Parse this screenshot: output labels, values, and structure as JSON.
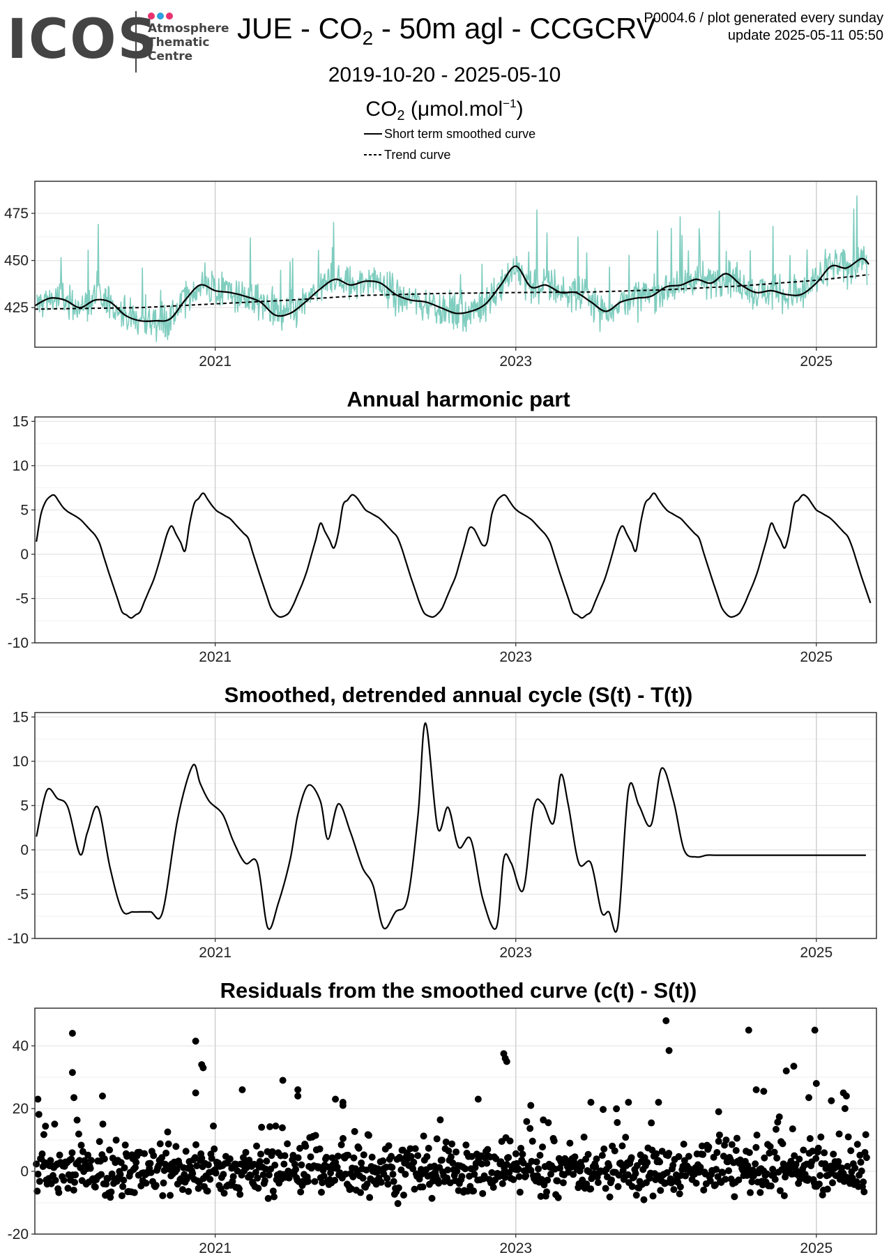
{
  "header": {
    "logo_text": "ICOS",
    "logo_subtitle": [
      "Atmosphere",
      "Thematic",
      "Centre"
    ],
    "logo_dot_colors": [
      "#e8316f",
      "#2d9fe0",
      "#e8316f"
    ],
    "title_prefix": "JUE - CO",
    "title_subscript": "2",
    "title_suffix": " - 50m agl - CCGCRV",
    "date_range": "2019-10-20 - 2025-05-10",
    "unit_prefix": "CO",
    "unit_subscript": "2",
    "unit_middle": " (μmol.mol",
    "unit_superscript": "−1",
    "unit_suffix": ")",
    "meta_line1": "P0004.6 / plot generated every sunday",
    "meta_line2": "update  2025-05-11 05:50"
  },
  "legend": [
    {
      "label": "Short term smoothed curve",
      "style": "solid"
    },
    {
      "label": "Trend curve",
      "style": "dashed"
    }
  ],
  "colors": {
    "raw_series": "#7fcdbf",
    "curve": "#000000",
    "grid": "#e6e6e6",
    "axis_frame": "#333333"
  },
  "chart_data": [
    {
      "type": "line",
      "title": "",
      "xlim": [
        2019.8,
        2025.4
      ],
      "ylim": [
        404,
        492
      ],
      "yticks": [
        425,
        450,
        475
      ],
      "xticks": [
        2021,
        2023,
        2025
      ],
      "xtick_labels": [
        "2021",
        "2023",
        "2025"
      ],
      "grid": true,
      "series": [
        {
          "name": "Short term smoothed curve",
          "style": "solid",
          "x": [
            2019.8,
            2019.9,
            2020.0,
            2020.1,
            2020.2,
            2020.3,
            2020.4,
            2020.5,
            2020.6,
            2020.7,
            2020.8,
            2020.9,
            2021.0,
            2021.1,
            2021.2,
            2021.3,
            2021.4,
            2021.5,
            2021.6,
            2021.7,
            2021.8,
            2021.9,
            2022.0,
            2022.1,
            2022.2,
            2022.3,
            2022.4,
            2022.5,
            2022.6,
            2022.7,
            2022.8,
            2022.9,
            2023.0,
            2023.1,
            2023.2,
            2023.3,
            2023.4,
            2023.5,
            2023.6,
            2023.7,
            2023.8,
            2023.9,
            2024.0,
            2024.1,
            2024.2,
            2024.3,
            2024.4,
            2024.5,
            2024.6,
            2024.7,
            2024.8,
            2024.9,
            2025.0,
            2025.1,
            2025.2,
            2025.3,
            2025.35
          ],
          "y": [
            426,
            430,
            429,
            425,
            429,
            428,
            421,
            418,
            418,
            419,
            429,
            437,
            434,
            433,
            431,
            428,
            421,
            422,
            428,
            435,
            440,
            437,
            439,
            438,
            432,
            429,
            428,
            425,
            422,
            423,
            427,
            437,
            447,
            436,
            437,
            433,
            433,
            428,
            423,
            428,
            430,
            431,
            436,
            437,
            440,
            438,
            443,
            437,
            433,
            434,
            432,
            432,
            438,
            447,
            446,
            451,
            448
          ]
        },
        {
          "name": "Trend curve",
          "style": "dashed",
          "x": [
            2019.8,
            2020.5,
            2021.0,
            2021.5,
            2022.0,
            2022.5,
            2023.0,
            2023.5,
            2024.0,
            2024.5,
            2025.0,
            2025.35
          ],
          "y": [
            424.2,
            425.0,
            427.0,
            429.0,
            431.5,
            432.5,
            433.0,
            433.3,
            434.5,
            436.5,
            439.5,
            442.5
          ]
        }
      ]
    },
    {
      "type": "line",
      "title": "Annual harmonic part",
      "xlim": [
        2019.8,
        2025.4
      ],
      "ylim": [
        -10,
        15.5
      ],
      "yticks": [
        -10,
        -5,
        0,
        5,
        10,
        15
      ],
      "xticks": [
        2021,
        2023,
        2025
      ],
      "xtick_labels": [
        "2021",
        "2023",
        "2025"
      ],
      "grid": true,
      "series": [
        {
          "style": "solid",
          "x_phase_start": 2019.8,
          "period_samples_phase": [
            0.0,
            0.05,
            0.12,
            0.2,
            0.3,
            0.42,
            0.5,
            0.58,
            0.64,
            0.7,
            0.8,
            0.9,
            1.0
          ],
          "period_samples_value": [
            0.4,
            5.5,
            6.9,
            5.0,
            4.0,
            1.8,
            -2.5,
            -6.5,
            -7.2,
            -6.5,
            -2.5,
            3.5,
            0.4
          ]
        }
      ]
    },
    {
      "type": "line",
      "title": "Smoothed, detrended annual cycle (S(t) - T(t))",
      "xlim": [
        2019.8,
        2025.4
      ],
      "ylim": [
        -10,
        15.5
      ],
      "yticks": [
        -10,
        -5,
        0,
        5,
        10,
        15
      ],
      "xticks": [
        2021,
        2023,
        2025
      ],
      "xtick_labels": [
        "2021",
        "2023",
        "2025"
      ],
      "grid": true,
      "series": [
        {
          "style": "solid",
          "x": [
            2019.81,
            2019.88,
            2019.95,
            2020.02,
            2020.1,
            2020.15,
            2020.22,
            2020.3,
            2020.38,
            2020.45,
            2020.5,
            2020.57,
            2020.65,
            2020.75,
            2020.85,
            2020.9,
            2020.96,
            2021.05,
            2021.12,
            2021.2,
            2021.28,
            2021.35,
            2021.42,
            2021.5,
            2021.55,
            2021.62,
            2021.7,
            2021.75,
            2021.82,
            2021.9,
            2021.98,
            2022.05,
            2022.12,
            2022.2,
            2022.28,
            2022.35,
            2022.4,
            2022.48,
            2022.55,
            2022.62,
            2022.7,
            2022.78,
            2022.87,
            2022.92,
            2022.97,
            2023.05,
            2023.12,
            2023.18,
            2023.25,
            2023.3,
            2023.35,
            2023.42,
            2023.5,
            2023.57,
            2023.62,
            2023.68,
            2023.75,
            2023.82,
            2023.9,
            2023.97,
            2024.05,
            2024.12,
            2024.2,
            2024.27,
            2024.33,
            2024.4,
            2024.47,
            2024.52,
            2024.57,
            2024.62,
            2024.68,
            2024.72,
            2024.78,
            2024.83,
            2024.9,
            2024.98,
            2025.05,
            2025.12,
            2025.2,
            2025.27,
            2025.33
          ],
          "y": [
            1.5,
            6.7,
            5.8,
            4.8,
            -0.5,
            2.0,
            4.8,
            -2.0,
            -6.8,
            -7.0,
            -7.0,
            -7.0,
            -7.0,
            3.5,
            9.5,
            7.5,
            5.5,
            4.0,
            1.0,
            -1.5,
            -1.5,
            -8.8,
            -6.0,
            -1.0,
            4.0,
            7.3,
            5.5,
            1.2,
            5.2,
            2.0,
            -2.0,
            -4.0,
            -8.8,
            -7.0,
            -5.5,
            4.0,
            14.3,
            2.5,
            4.8,
            0.3,
            1.2,
            -5.5,
            -8.8,
            -1.0,
            -1.5,
            -4.5,
            4.8,
            5.2,
            3.0,
            8.5,
            5.0,
            -1.5,
            -1.5,
            -7.0,
            -7.0,
            -8.5,
            6.8,
            5.0,
            2.8,
            9.2,
            5.5,
            0.0,
            -0.8,
            -0.6,
            -0.6,
            -0.6,
            -0.6,
            -0.6,
            -0.6,
            -0.6,
            -0.6,
            -0.6,
            -0.6,
            -0.6,
            -0.6,
            -0.6,
            -0.6,
            -0.6,
            -0.6,
            -0.6,
            -0.6
          ]
        }
      ]
    },
    {
      "type": "scatter",
      "title": "Residuals from the smoothed curve (c(t) - S(t))",
      "xlim": [
        2019.8,
        2025.4
      ],
      "ylim": [
        -20,
        52
      ],
      "yticks": [
        -20,
        0,
        20,
        40
      ],
      "xticks": [
        2021,
        2023,
        2025
      ],
      "xtick_labels": [
        "2021",
        "2023",
        "2025"
      ],
      "grid": true,
      "outliers": {
        "x": [
          2019.82,
          2020.05,
          2020.05,
          2020.06,
          2020.25,
          2020.87,
          2020.87,
          2020.91,
          2020.92,
          2021.18,
          2021.45,
          2021.55,
          2021.55,
          2021.8,
          2021.85,
          2021.85,
          2022.75,
          2022.92,
          2022.93,
          2022.94,
          2023.1,
          2023.5,
          2023.75,
          2023.95,
          2024.0,
          2024.02,
          2024.35,
          2024.55,
          2024.6,
          2024.65,
          2024.8,
          2024.85,
          2024.95,
          2024.99,
          2025.0,
          2025.1,
          2025.18,
          2025.2
        ],
        "y": [
          23,
          44,
          31.5,
          23.5,
          24,
          41.5,
          25,
          34,
          33,
          26,
          29,
          26,
          24,
          23,
          22,
          21,
          23,
          37.5,
          36,
          35,
          21,
          22,
          22,
          22,
          48,
          38.5,
          19,
          45,
          26,
          25.5,
          32,
          33.5,
          23.5,
          45,
          28,
          22.5,
          25,
          24
        ]
      },
      "bulk_points": {
        "count": 1000,
        "y_low": -17,
        "y_high": 20,
        "core_sigma": 6
      }
    }
  ]
}
